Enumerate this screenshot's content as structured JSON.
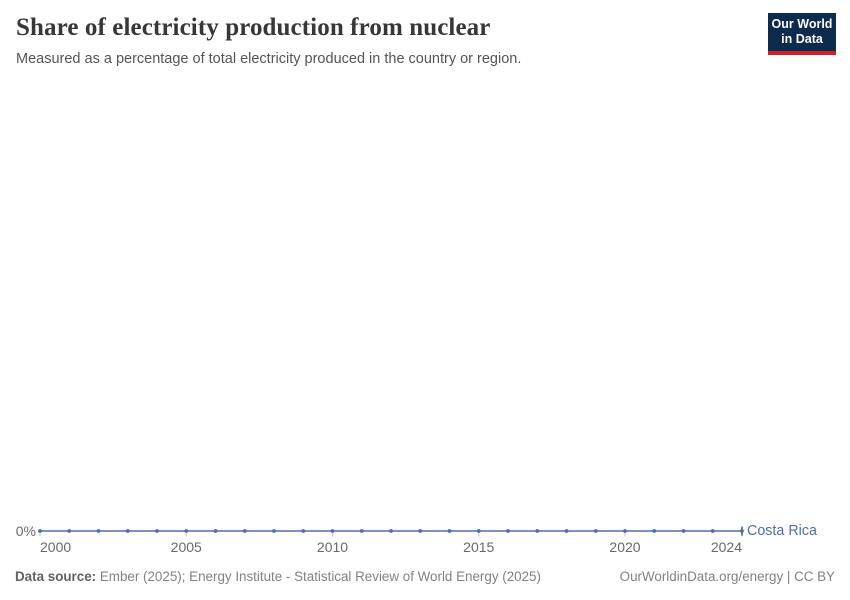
{
  "header": {
    "title": "Share of electricity production from nuclear",
    "subtitle": "Measured as a percentage of total electricity produced in the country or region.",
    "logo": {
      "line1": "Our World",
      "line2": "in Data"
    }
  },
  "chart_data": {
    "type": "line",
    "title": "Share of electricity production from nuclear",
    "xlabel": "",
    "ylabel": "",
    "x": [
      2000,
      2001,
      2002,
      2003,
      2004,
      2005,
      2006,
      2007,
      2008,
      2009,
      2010,
      2011,
      2012,
      2013,
      2014,
      2015,
      2016,
      2017,
      2018,
      2019,
      2020,
      2021,
      2022,
      2023,
      2024
    ],
    "series": [
      {
        "name": "Costa Rica",
        "unit": "%",
        "values": [
          0,
          0,
          0,
          0,
          0,
          0,
          0,
          0,
          0,
          0,
          0,
          0,
          0,
          0,
          0,
          0,
          0,
          0,
          0,
          0,
          0,
          0,
          0,
          0,
          0
        ]
      }
    ],
    "x_ticks": [
      2000,
      2005,
      2010,
      2015,
      2020,
      2024
    ],
    "y_ticks": [
      {
        "value": 0,
        "label": "0%"
      }
    ],
    "grid": false,
    "legend_position": "end-of-line",
    "marker": "dot-every-year"
  },
  "footer": {
    "data_source_label": "Data source:",
    "data_source": "Ember (2025); Energy Institute - Statistical Review of World Energy (2025)",
    "right_text": "OurWorldinData.org/energy | CC BY"
  },
  "colors": {
    "series": "#4d6fa8",
    "logo_bg": "#0c2b4e",
    "logo_red": "#d21f1f",
    "title_text": "#373737",
    "subtitle_text": "#555555",
    "axis_text": "#696969",
    "footer_text": "#828282",
    "tick_mark": "#c9c9c9"
  }
}
